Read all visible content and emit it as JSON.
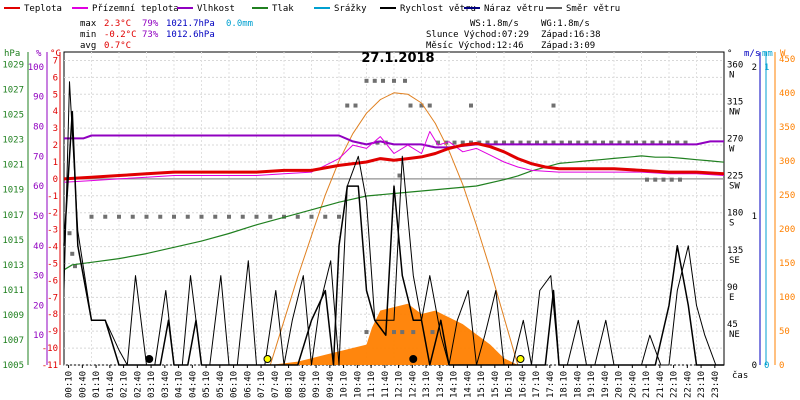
{
  "legend": [
    {
      "label": "Teplota",
      "color": "#e00000"
    },
    {
      "label": "Přízemní teplota",
      "color": "#e000e0"
    },
    {
      "label": "Vlhkost",
      "color": "#9000c0"
    },
    {
      "label": "Tlak",
      "color": "#208020"
    },
    {
      "label": "Srážky",
      "color": "#00a0d0"
    },
    {
      "label": "Rychlost větru",
      "color": "#000000"
    },
    {
      "label": "Náraz větru",
      "color": "#000080"
    },
    {
      "label": "Směr větru",
      "color": "#606060"
    }
  ],
  "stats": {
    "max_label": "max",
    "min_label": "min",
    "avg_label": "avg",
    "temp_max": "2.3°C",
    "hum_max": "79%",
    "press_max": "1021.7hPa",
    "rain_max": "0.0mm",
    "temp_min": "-0.2°C",
    "hum_min": "73%",
    "press_min": "1012.6hPa",
    "temp_avg": "0.7°C"
  },
  "wind_info": {
    "ws": "WS:1.8m/s",
    "wg": "WG:1.8m/s",
    "sun": "Slunce Východ:07:29",
    "sun_set": "Západ:16:38",
    "moon": "Měsíc  Východ:12:46",
    "moon_set": "Západ:3:09"
  },
  "axis_units": {
    "hpa": "hPa",
    "pct": "%",
    "degc": "°C",
    "deg": "°",
    "ms": "m/s",
    "mm": "mm",
    "w": "W",
    "cas": "čas"
  },
  "chart_data": {
    "type": "line",
    "title": "27.1.2018",
    "x_ticks": [
      "00:10",
      "00:40",
      "01:10",
      "01:40",
      "02:10",
      "02:40",
      "03:10",
      "03:40",
      "04:10",
      "04:40",
      "05:10",
      "05:40",
      "06:10",
      "06:40",
      "07:10",
      "07:40",
      "08:10",
      "08:40",
      "09:10",
      "09:40",
      "10:10",
      "10:40",
      "11:10",
      "11:40",
      "12:10",
      "12:40",
      "13:10",
      "13:40",
      "14:10",
      "14:40",
      "15:10",
      "15:40",
      "16:10",
      "16:40",
      "17:10",
      "17:40",
      "18:10",
      "18:40",
      "19:10",
      "19:40",
      "20:10",
      "20:40",
      "21:10",
      "21:40",
      "22:10",
      "22:40",
      "23:10",
      "23:40"
    ],
    "x_range_hours": [
      0,
      24
    ],
    "axes": {
      "temp": {
        "ticks": [
          -11,
          -10,
          -9,
          -8,
          -7,
          -6,
          -5,
          -4,
          -3,
          -2,
          -1,
          0,
          1,
          2,
          3,
          4,
          5,
          6,
          7
        ],
        "range": [
          -11,
          7.5
        ]
      },
      "hum": {
        "ticks": [
          0,
          10,
          20,
          30,
          40,
          50,
          60,
          70,
          80,
          90,
          100
        ],
        "range": [
          0,
          105
        ]
      },
      "press": {
        "ticks": [
          1005,
          1007,
          1009,
          1011,
          1013,
          1015,
          1017,
          1019,
          1021,
          1023,
          1025,
          1027,
          1029
        ],
        "range": [
          1005,
          1030
        ]
      },
      "dir": {
        "labels": [
          {
            "v": 360,
            "t": "360",
            "c": "N"
          },
          {
            "v": 315,
            "t": "315",
            "c": "NW"
          },
          {
            "v": 270,
            "t": "270",
            "c": "W"
          },
          {
            "v": 225,
            "t": "225",
            "c": "SW"
          },
          {
            "v": 180,
            "t": "180",
            "c": "S"
          },
          {
            "v": 135,
            "t": "135",
            "c": "SE"
          },
          {
            "v": 90,
            "t": "90",
            "c": "E"
          },
          {
            "v": 45,
            "t": "45",
            "c": "NE"
          }
        ],
        "range": [
          0,
          380
        ]
      },
      "wind_ms": {
        "ticks": [
          0,
          1,
          2
        ],
        "range": [
          0,
          2.1
        ]
      },
      "rain_mm": {
        "ticks": [
          0,
          1
        ],
        "range": [
          0,
          1.05
        ]
      },
      "solar_w": {
        "ticks": [
          0,
          50,
          100,
          150,
          200,
          250,
          300,
          350,
          400,
          450
        ],
        "range": [
          0,
          460
        ]
      }
    },
    "series": [
      {
        "name": "Teplota",
        "axis": "temp",
        "color": "#e00000",
        "width": 3,
        "x": [
          0,
          1,
          2,
          3,
          4,
          5,
          6,
          7,
          8,
          9,
          10,
          11,
          11.5,
          12,
          12.5,
          13,
          13.5,
          14,
          14.5,
          15,
          15.5,
          16,
          16.5,
          17,
          17.5,
          18,
          19,
          20,
          21,
          22,
          23,
          24
        ],
        "y": [
          0.0,
          0.1,
          0.2,
          0.3,
          0.4,
          0.4,
          0.4,
          0.4,
          0.5,
          0.5,
          0.8,
          1.0,
          1.2,
          1.1,
          1.2,
          1.3,
          1.5,
          1.8,
          2.0,
          2.1,
          1.9,
          1.6,
          1.2,
          0.9,
          0.7,
          0.6,
          0.6,
          0.6,
          0.5,
          0.4,
          0.4,
          0.3
        ]
      },
      {
        "name": "Přízemní teplota",
        "axis": "temp",
        "color": "#e000e0",
        "width": 1,
        "x": [
          0,
          1,
          2,
          3,
          4,
          5,
          6,
          7,
          8,
          9,
          9.5,
          10,
          10.5,
          11,
          11.5,
          12,
          12.5,
          13,
          13.3,
          13.6,
          14,
          14.5,
          15,
          15.5,
          16,
          16.5,
          17,
          18,
          19,
          20,
          21,
          22,
          23,
          24
        ],
        "y": [
          -0.2,
          -0.1,
          0.0,
          0.1,
          0.2,
          0.2,
          0.2,
          0.2,
          0.3,
          0.4,
          0.8,
          1.2,
          2.0,
          1.8,
          2.5,
          1.5,
          2.0,
          1.5,
          2.8,
          2.0,
          2.2,
          1.6,
          1.8,
          1.4,
          1.0,
          0.7,
          0.5,
          0.4,
          0.4,
          0.4,
          0.4,
          0.3,
          0.3,
          0.2
        ]
      },
      {
        "name": "Vlhkost",
        "axis": "hum",
        "color": "#9000c0",
        "width": 2,
        "x": [
          0,
          0.7,
          1,
          4,
          6,
          9,
          10,
          10.5,
          11,
          11.5,
          12,
          13,
          13.5,
          14,
          15,
          16,
          17,
          18,
          19,
          20,
          21,
          22,
          23,
          23.5,
          24
        ],
        "y": [
          76,
          76,
          77,
          77,
          77,
          77,
          77,
          75,
          74,
          75,
          74,
          74,
          73,
          73,
          74,
          74,
          74,
          74,
          74,
          74,
          74,
          74,
          74,
          75,
          75
        ]
      },
      {
        "name": "Tlak",
        "axis": "press",
        "color": "#208020",
        "width": 1.2,
        "x": [
          0,
          0.3,
          1,
          2,
          3,
          4,
          5,
          6,
          7,
          8,
          9,
          10,
          11,
          12,
          13,
          14,
          15,
          16,
          16.5,
          17,
          17.5,
          18,
          18.5,
          19,
          19.5,
          20,
          20.5,
          21,
          21.5,
          22,
          22.5,
          23,
          23.5,
          24
        ],
        "y": [
          1012.6,
          1013.0,
          1013.2,
          1013.5,
          1013.9,
          1014.4,
          1014.9,
          1015.5,
          1016.2,
          1016.8,
          1017.4,
          1018.0,
          1018.5,
          1018.7,
          1018.9,
          1019.1,
          1019.3,
          1019.8,
          1020.1,
          1020.5,
          1020.8,
          1021.1,
          1021.2,
          1021.3,
          1021.4,
          1021.5,
          1021.6,
          1021.7,
          1021.6,
          1021.6,
          1021.5,
          1021.4,
          1021.3,
          1021.2
        ]
      },
      {
        "name": "Rychlost větru",
        "axis": "wind_ms",
        "color": "#000000",
        "width": 1.5,
        "x": [
          0,
          0.3,
          0.5,
          1,
          1.5,
          2,
          2.5,
          3,
          3.5,
          3.8,
          4,
          4.5,
          4.8,
          5,
          5.5,
          6,
          6.5,
          7,
          7.5,
          8,
          8.5,
          9,
          9.5,
          9.8,
          10,
          10.3,
          10.7,
          11,
          11.3,
          11.7,
          12,
          12.3,
          12.7,
          13,
          13.3,
          13.7,
          14,
          14.5,
          15,
          15.5,
          16,
          16.5,
          17,
          17.5,
          17.8,
          18,
          18.5,
          19,
          19.5,
          20,
          20.5,
          21,
          21.5,
          22,
          22.3,
          22.7,
          23,
          23.5,
          24
        ],
        "y": [
          0.8,
          1.7,
          0.8,
          0.3,
          0.3,
          0.0,
          0.0,
          0.0,
          0.0,
          0.3,
          0.0,
          0.0,
          0.3,
          0.0,
          0.0,
          0.0,
          0.0,
          0.0,
          0.0,
          0.0,
          0.0,
          0.3,
          0.5,
          0.0,
          0.8,
          1.2,
          1.2,
          0.5,
          0.3,
          0.2,
          1.2,
          0.6,
          0.3,
          0.3,
          0.0,
          0.3,
          0.0,
          0.0,
          0.0,
          0.0,
          0.0,
          0.0,
          0.0,
          0.0,
          0.5,
          0.0,
          0.0,
          0.0,
          0.0,
          0.0,
          0.0,
          0.0,
          0.0,
          0.4,
          0.8,
          0.4,
          0.0,
          0.0,
          0.0
        ]
      },
      {
        "name": "Náraz větru",
        "axis": "wind_ms",
        "color": "#000000",
        "width": 1,
        "x": [
          0,
          0.2,
          0.5,
          1,
          1.5,
          2,
          2.3,
          2.6,
          3,
          3.3,
          3.7,
          4,
          4.3,
          4.6,
          5,
          5.3,
          5.7,
          6,
          6.3,
          6.7,
          7,
          7.3,
          7.7,
          8,
          8.3,
          8.7,
          9,
          9.3,
          9.7,
          10,
          10.3,
          10.7,
          11,
          11.3,
          11.7,
          12,
          12.3,
          12.7,
          13,
          13.3,
          13.7,
          14,
          14.3,
          14.7,
          15,
          15.3,
          15.7,
          16,
          16.3,
          16.7,
          17,
          17.3,
          17.7,
          18,
          18.3,
          18.7,
          19,
          19.3,
          19.7,
          20,
          20.3,
          20.7,
          21,
          21.3,
          21.7,
          22,
          22.3,
          22.7,
          23,
          23.3,
          23.7,
          24
        ],
        "y": [
          0.5,
          1.9,
          0.9,
          0.3,
          0.3,
          0.1,
          0.0,
          0.6,
          0.0,
          0.0,
          0.5,
          0.0,
          0.0,
          0.6,
          0.0,
          0.0,
          0.6,
          0.0,
          0.0,
          0.7,
          0.0,
          0.0,
          0.5,
          0.0,
          0.3,
          0.6,
          0.0,
          0.4,
          0.7,
          0.0,
          1.2,
          1.4,
          1.1,
          0.3,
          0.3,
          0.3,
          1.4,
          0.6,
          0.3,
          0.6,
          0.2,
          0.0,
          0.3,
          0.5,
          0.0,
          0.2,
          0.5,
          0.0,
          0.0,
          0.3,
          0.0,
          0.5,
          0.6,
          0.0,
          0.0,
          0.3,
          0.0,
          0.0,
          0.3,
          0.0,
          0.0,
          0.0,
          0.0,
          0.2,
          0.0,
          0.0,
          0.5,
          0.8,
          0.4,
          0.2,
          0.0,
          0.0
        ]
      },
      {
        "name": "Sluneční záření",
        "axis": "solar_w",
        "color": "#ff8000",
        "fill": true,
        "x": [
          7.5,
          8.5,
          9,
          9.5,
          10,
          10.5,
          11,
          11.2,
          11.5,
          12,
          12.5,
          13,
          13.5,
          14,
          14.5,
          15,
          15.5,
          16,
          16.5
        ],
        "y": [
          0,
          5,
          10,
          15,
          20,
          25,
          30,
          55,
          80,
          85,
          90,
          75,
          80,
          70,
          60,
          45,
          30,
          10,
          0
        ]
      },
      {
        "name": "Teoretické záření",
        "axis": "solar_w",
        "color": "#e08020",
        "width": 1,
        "x": [
          7.5,
          8,
          8.5,
          9,
          9.5,
          10,
          10.5,
          11,
          11.5,
          12,
          12.5,
          13,
          13.5,
          14,
          14.5,
          15,
          15.5,
          16,
          16.5
        ],
        "y": [
          0,
          65,
          130,
          190,
          250,
          300,
          340,
          370,
          390,
          400,
          398,
          385,
          355,
          315,
          265,
          205,
          140,
          70,
          0
        ]
      }
    ],
    "wind_direction_points": [
      {
        "x": 1.0,
        "y": 180
      },
      {
        "x": 1.5,
        "y": 180
      },
      {
        "x": 2.0,
        "y": 180
      },
      {
        "x": 2.5,
        "y": 180
      },
      {
        "x": 3.0,
        "y": 180
      },
      {
        "x": 3.5,
        "y": 180
      },
      {
        "x": 4.0,
        "y": 180
      },
      {
        "x": 4.5,
        "y": 180
      },
      {
        "x": 5.0,
        "y": 180
      },
      {
        "x": 5.5,
        "y": 180
      },
      {
        "x": 6.0,
        "y": 180
      },
      {
        "x": 6.5,
        "y": 180
      },
      {
        "x": 7.0,
        "y": 180
      },
      {
        "x": 7.5,
        "y": 180
      },
      {
        "x": 8.0,
        "y": 180
      },
      {
        "x": 8.5,
        "y": 180
      },
      {
        "x": 9.0,
        "y": 180
      },
      {
        "x": 9.5,
        "y": 180
      },
      {
        "x": 10.0,
        "y": 180
      },
      {
        "x": 0.2,
        "y": 160
      },
      {
        "x": 0.3,
        "y": 135
      },
      {
        "x": 0.4,
        "y": 120
      },
      {
        "x": 10.3,
        "y": 315
      },
      {
        "x": 10.6,
        "y": 315
      },
      {
        "x": 11.0,
        "y": 345
      },
      {
        "x": 11.3,
        "y": 345
      },
      {
        "x": 11.6,
        "y": 345
      },
      {
        "x": 12.0,
        "y": 345
      },
      {
        "x": 12.4,
        "y": 345
      },
      {
        "x": 11.4,
        "y": 270
      },
      {
        "x": 11.7,
        "y": 270
      },
      {
        "x": 12.2,
        "y": 230
      },
      {
        "x": 12.6,
        "y": 315
      },
      {
        "x": 13.0,
        "y": 315
      },
      {
        "x": 13.3,
        "y": 315
      },
      {
        "x": 13.6,
        "y": 270
      },
      {
        "x": 13.9,
        "y": 270
      },
      {
        "x": 14.2,
        "y": 270
      },
      {
        "x": 14.5,
        "y": 270
      },
      {
        "x": 14.8,
        "y": 270
      },
      {
        "x": 15.1,
        "y": 270
      },
      {
        "x": 15.4,
        "y": 270
      },
      {
        "x": 15.7,
        "y": 270
      },
      {
        "x": 16.0,
        "y": 270
      },
      {
        "x": 16.3,
        "y": 270
      },
      {
        "x": 16.6,
        "y": 270
      },
      {
        "x": 16.9,
        "y": 270
      },
      {
        "x": 17.2,
        "y": 270
      },
      {
        "x": 17.5,
        "y": 270
      },
      {
        "x": 17.8,
        "y": 270
      },
      {
        "x": 18.1,
        "y": 270
      },
      {
        "x": 18.4,
        "y": 270
      },
      {
        "x": 18.7,
        "y": 270
      },
      {
        "x": 19.0,
        "y": 270
      },
      {
        "x": 19.3,
        "y": 270
      },
      {
        "x": 19.6,
        "y": 270
      },
      {
        "x": 19.9,
        "y": 270
      },
      {
        "x": 20.2,
        "y": 270
      },
      {
        "x": 20.5,
        "y": 270
      },
      {
        "x": 20.8,
        "y": 270
      },
      {
        "x": 21.1,
        "y": 270
      },
      {
        "x": 21.4,
        "y": 270
      },
      {
        "x": 21.7,
        "y": 270
      },
      {
        "x": 22.0,
        "y": 270
      },
      {
        "x": 22.3,
        "y": 270
      },
      {
        "x": 22.6,
        "y": 270
      },
      {
        "x": 17.8,
        "y": 315
      },
      {
        "x": 14.8,
        "y": 315
      },
      {
        "x": 21.2,
        "y": 225
      },
      {
        "x": 21.5,
        "y": 225
      },
      {
        "x": 21.8,
        "y": 225
      },
      {
        "x": 22.1,
        "y": 225
      },
      {
        "x": 22.4,
        "y": 225
      },
      {
        "x": 12.0,
        "y": 40
      },
      {
        "x": 12.3,
        "y": 40
      },
      {
        "x": 12.7,
        "y": 40
      },
      {
        "x": 13.4,
        "y": 40
      },
      {
        "x": 11.0,
        "y": 40
      }
    ],
    "event_markers": [
      {
        "x": 3.1,
        "fill": "#000000"
      },
      {
        "x": 7.4,
        "fill": "#ffff00"
      },
      {
        "x": 12.7,
        "fill": "#000000"
      },
      {
        "x": 16.6,
        "fill": "#ffff00"
      }
    ]
  }
}
